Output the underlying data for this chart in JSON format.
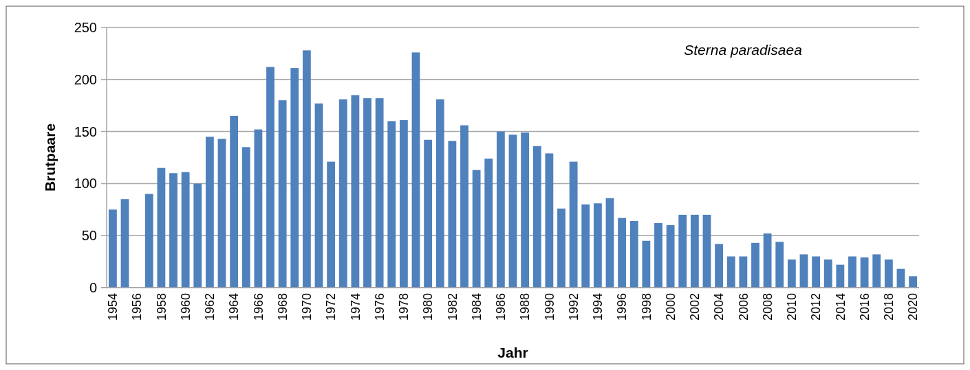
{
  "chart_data": {
    "type": "bar",
    "xlabel": "Jahr",
    "ylabel": "Brutpaare",
    "categories": [
      "1954",
      null,
      "1956",
      null,
      "1958",
      null,
      "1960",
      null,
      "1962",
      null,
      "1964",
      null,
      "1966",
      null,
      "1968",
      null,
      "1970",
      null,
      "1972",
      null,
      "1974",
      null,
      "1976",
      null,
      "1978",
      null,
      "1980",
      null,
      "1982",
      null,
      "1984",
      null,
      "1986",
      null,
      "1988",
      null,
      "1990",
      null,
      "1992",
      null,
      "1994",
      null,
      "1996",
      null,
      "1998",
      null,
      "2000",
      null,
      "2002",
      null,
      "2004",
      null,
      "2006",
      null,
      "2008",
      null,
      "2010",
      null,
      "2012",
      null,
      "2014",
      null,
      "2016",
      null,
      "2018",
      null,
      "2020"
    ],
    "values": [
      75,
      85,
      null,
      90,
      115,
      110,
      111,
      100,
      145,
      143,
      165,
      135,
      152,
      212,
      180,
      211,
      228,
      177,
      121,
      181,
      185,
      182,
      182,
      160,
      161,
      226,
      142,
      181,
      141,
      156,
      113,
      124,
      150,
      147,
      149,
      136,
      129,
      76,
      121,
      80,
      81,
      86,
      67,
      64,
      45,
      62,
      60,
      70,
      70,
      70,
      42,
      30,
      30,
      43,
      52,
      44,
      27,
      32,
      30,
      27,
      22,
      30,
      29,
      32,
      27,
      18,
      11
    ],
    "color": "#4f81bd",
    "ylim": [
      0,
      250
    ],
    "yticks": [
      0,
      50,
      100,
      150,
      200,
      250
    ],
    "grid": "y",
    "annotations": [
      "Sterna paradisaea"
    ]
  }
}
